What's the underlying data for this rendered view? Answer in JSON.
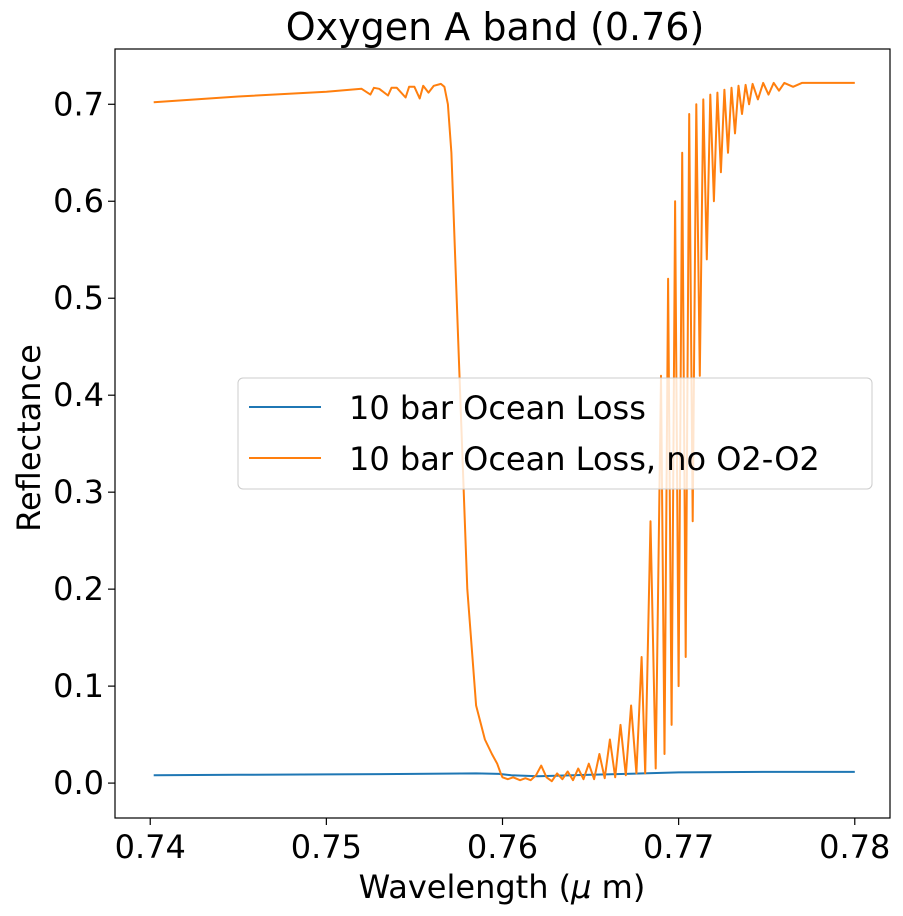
{
  "chart_data": {
    "type": "line",
    "title": "Oxygen A band (0.76)",
    "xlabel": "Wavelength ($\\mu$ m)",
    "xlabel_prefix": "Wavelength (",
    "xlabel_mu": "μ",
    "xlabel_suffix": " m)",
    "ylabel": "Reflectance",
    "xlim": [
      0.738,
      0.782
    ],
    "ylim": [
      -0.036,
      0.757
    ],
    "xticks": [
      0.74,
      0.75,
      0.76,
      0.77,
      0.78
    ],
    "xtick_labels": [
      "0.74",
      "0.75",
      "0.76",
      "0.77",
      "0.78"
    ],
    "yticks": [
      0.0,
      0.1,
      0.2,
      0.3,
      0.4,
      0.5,
      0.6,
      0.7
    ],
    "ytick_labels": [
      "0.0",
      "0.1",
      "0.2",
      "0.3",
      "0.4",
      "0.5",
      "0.6",
      "0.7"
    ],
    "grid": false,
    "legend_position": "center-right",
    "series": [
      {
        "name": "10 bar Ocean Loss",
        "color": "#1f77b4",
        "x": [
          0.7402,
          0.745,
          0.75,
          0.755,
          0.7585,
          0.7598,
          0.7605,
          0.762,
          0.765,
          0.768,
          0.77,
          0.775,
          0.78
        ],
        "y": [
          0.008,
          0.0085,
          0.009,
          0.0095,
          0.01,
          0.0095,
          0.008,
          0.007,
          0.0085,
          0.01,
          0.011,
          0.0115,
          0.0115
        ]
      },
      {
        "name": "10 bar Ocean Loss, no O2-O2",
        "color": "#ff7f0e",
        "x": [
          0.7402,
          0.745,
          0.75,
          0.752,
          0.7525,
          0.7527,
          0.753,
          0.7535,
          0.7537,
          0.754,
          0.7545,
          0.7547,
          0.755,
          0.7553,
          0.7555,
          0.7558,
          0.7561,
          0.7565,
          0.7567,
          0.7569,
          0.7571,
          0.7573,
          0.7576,
          0.758,
          0.7585,
          0.759,
          0.7594,
          0.7597,
          0.7599,
          0.76,
          0.7603,
          0.7606,
          0.761,
          0.7613,
          0.7616,
          0.7619,
          0.7622,
          0.7625,
          0.7628,
          0.7631,
          0.7634,
          0.7637,
          0.764,
          0.7643,
          0.7646,
          0.7649,
          0.7652,
          0.7655,
          0.7658,
          0.7661,
          0.7664,
          0.7667,
          0.767,
          0.7673,
          0.7676,
          0.7679,
          0.7681,
          0.7684,
          0.7687,
          0.769,
          0.7692,
          0.7694,
          0.7696,
          0.7698,
          0.77,
          0.7702,
          0.7704,
          0.7706,
          0.7708,
          0.771,
          0.7712,
          0.7714,
          0.7716,
          0.7718,
          0.772,
          0.7722,
          0.7724,
          0.7726,
          0.7728,
          0.773,
          0.7732,
          0.7734,
          0.7736,
          0.7738,
          0.774,
          0.7742,
          0.7745,
          0.7748,
          0.7751,
          0.7754,
          0.7757,
          0.776,
          0.7765,
          0.777,
          0.778,
          0.779,
          0.78
        ],
        "y": [
          0.702,
          0.708,
          0.713,
          0.716,
          0.71,
          0.717,
          0.716,
          0.709,
          0.717,
          0.717,
          0.707,
          0.718,
          0.718,
          0.706,
          0.719,
          0.712,
          0.719,
          0.721,
          0.718,
          0.7,
          0.65,
          0.55,
          0.4,
          0.2,
          0.08,
          0.045,
          0.03,
          0.02,
          0.01,
          0.006,
          0.004,
          0.006,
          0.003,
          0.005,
          0.003,
          0.008,
          0.018,
          0.006,
          0.002,
          0.01,
          0.004,
          0.012,
          0.003,
          0.015,
          0.004,
          0.02,
          0.004,
          0.03,
          0.005,
          0.045,
          0.006,
          0.06,
          0.008,
          0.08,
          0.01,
          0.13,
          0.01,
          0.27,
          0.015,
          0.42,
          0.03,
          0.52,
          0.06,
          0.6,
          0.1,
          0.65,
          0.13,
          0.69,
          0.27,
          0.7,
          0.42,
          0.705,
          0.54,
          0.71,
          0.6,
          0.712,
          0.63,
          0.715,
          0.65,
          0.717,
          0.67,
          0.719,
          0.69,
          0.72,
          0.7,
          0.721,
          0.705,
          0.722,
          0.71,
          0.722,
          0.714,
          0.722,
          0.718,
          0.722,
          0.722,
          0.722,
          0.722
        ]
      }
    ]
  }
}
